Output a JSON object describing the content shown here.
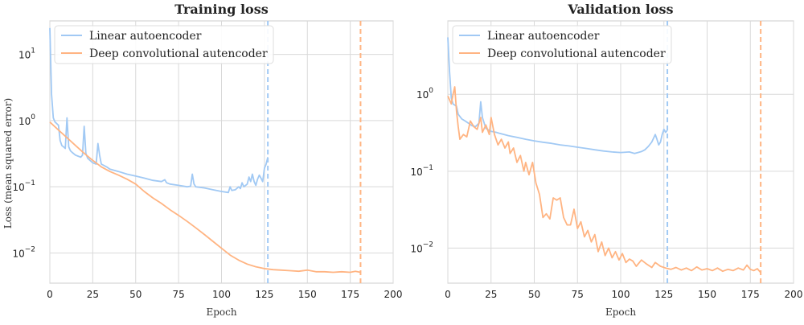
{
  "chart_data": [
    {
      "type": "line",
      "title": "Training loss",
      "xlabel": "Epoch",
      "ylabel": "Loss (mean squared error)",
      "xlim": [
        0,
        200
      ],
      "ylim": [
        0.0035,
        32
      ],
      "yscale": "log",
      "xticks": [
        "0",
        "25",
        "50",
        "75",
        "100",
        "125",
        "150",
        "175",
        "200"
      ],
      "yticks": [
        {
          "base": "10",
          "exp": "1",
          "value": 10
        },
        {
          "base": "10",
          "exp": "0",
          "value": 1
        },
        {
          "base": "10",
          "exp": "−1",
          "value": 0.1
        },
        {
          "base": "10",
          "exp": "−2",
          "value": 0.01
        }
      ],
      "grid": true,
      "legend": "upper left",
      "series": [
        {
          "name": "Linear autoencoder",
          "color": "#a1c9f4",
          "stop_epoch": 127,
          "points": [
            [
              0,
              25
            ],
            [
              1,
              2.5
            ],
            [
              2,
              1.1
            ],
            [
              3,
              0.95
            ],
            [
              4,
              0.9
            ],
            [
              5,
              0.85
            ],
            [
              6,
              0.5
            ],
            [
              7,
              0.42
            ],
            [
              8,
              0.4
            ],
            [
              9,
              0.38
            ],
            [
              10,
              1.1
            ],
            [
              11,
              0.4
            ],
            [
              12,
              0.35
            ],
            [
              13,
              0.33
            ],
            [
              15,
              0.3
            ],
            [
              18,
              0.28
            ],
            [
              19,
              0.3
            ],
            [
              20,
              0.82
            ],
            [
              21,
              0.32
            ],
            [
              22,
              0.27
            ],
            [
              25,
              0.23
            ],
            [
              27,
              0.22
            ],
            [
              28,
              0.45
            ],
            [
              29,
              0.3
            ],
            [
              30,
              0.22
            ],
            [
              33,
              0.2
            ],
            [
              35,
              0.185
            ],
            [
              40,
              0.17
            ],
            [
              45,
              0.155
            ],
            [
              50,
              0.145
            ],
            [
              55,
              0.135
            ],
            [
              60,
              0.125
            ],
            [
              65,
              0.12
            ],
            [
              67,
              0.128
            ],
            [
              68,
              0.115
            ],
            [
              70,
              0.11
            ],
            [
              75,
              0.105
            ],
            [
              80,
              0.1
            ],
            [
              82,
              0.102
            ],
            [
              83,
              0.155
            ],
            [
              84,
              0.11
            ],
            [
              85,
              0.1
            ],
            [
              90,
              0.096
            ],
            [
              95,
              0.09
            ],
            [
              100,
              0.085
            ],
            [
              104,
              0.082
            ],
            [
              105,
              0.1
            ],
            [
              106,
              0.088
            ],
            [
              108,
              0.09
            ],
            [
              110,
              0.1
            ],
            [
              111,
              0.094
            ],
            [
              112,
              0.115
            ],
            [
              113,
              0.1
            ],
            [
              115,
              0.11
            ],
            [
              116,
              0.14
            ],
            [
              117,
              0.12
            ],
            [
              118,
              0.155
            ],
            [
              119,
              0.12
            ],
            [
              120,
              0.105
            ],
            [
              121,
              0.13
            ],
            [
              122,
              0.15
            ],
            [
              123,
              0.135
            ],
            [
              124,
              0.12
            ],
            [
              125,
              0.19
            ],
            [
              126,
              0.22
            ],
            [
              127,
              0.28
            ]
          ]
        },
        {
          "name": "Deep convolutional autencoder",
          "color": "#ffb482",
          "stop_epoch": 181,
          "points": [
            [
              0,
              0.95
            ],
            [
              5,
              0.72
            ],
            [
              10,
              0.55
            ],
            [
              15,
              0.42
            ],
            [
              20,
              0.32
            ],
            [
              25,
              0.25
            ],
            [
              30,
              0.2
            ],
            [
              35,
              0.17
            ],
            [
              40,
              0.15
            ],
            [
              45,
              0.13
            ],
            [
              50,
              0.11
            ],
            [
              55,
              0.085
            ],
            [
              60,
              0.068
            ],
            [
              65,
              0.056
            ],
            [
              70,
              0.045
            ],
            [
              75,
              0.037
            ],
            [
              80,
              0.03
            ],
            [
              85,
              0.024
            ],
            [
              90,
              0.019
            ],
            [
              95,
              0.015
            ],
            [
              100,
              0.0118
            ],
            [
              105,
              0.0093
            ],
            [
              110,
              0.0078
            ],
            [
              115,
              0.0068
            ],
            [
              120,
              0.0062
            ],
            [
              125,
              0.0058
            ],
            [
              130,
              0.0056
            ],
            [
              135,
              0.0055
            ],
            [
              140,
              0.0054
            ],
            [
              145,
              0.0053
            ],
            [
              150,
              0.0055
            ],
            [
              155,
              0.0052
            ],
            [
              160,
              0.0052
            ],
            [
              165,
              0.0051
            ],
            [
              170,
              0.0052
            ],
            [
              175,
              0.0051
            ],
            [
              178,
              0.0053
            ],
            [
              181,
              0.0051
            ]
          ]
        }
      ]
    },
    {
      "type": "line",
      "title": "Validation loss",
      "xlabel": "Epoch",
      "ylabel": "",
      "xlim": [
        0,
        200
      ],
      "ylim": [
        0.0035,
        9
      ],
      "yscale": "log",
      "xticks": [
        "0",
        "25",
        "50",
        "75",
        "100",
        "125",
        "150",
        "175",
        "200"
      ],
      "yticks": [
        {
          "base": "10",
          "exp": "0",
          "value": 1
        },
        {
          "base": "10",
          "exp": "−1",
          "value": 0.1
        },
        {
          "base": "10",
          "exp": "−2",
          "value": 0.01
        }
      ],
      "grid": true,
      "legend": "upper left",
      "series": [
        {
          "name": "Linear autoencoder",
          "color": "#a1c9f4",
          "stop_epoch": 127,
          "points": [
            [
              0,
              5.5
            ],
            [
              1,
              2.0
            ],
            [
              2,
              0.9
            ],
            [
              3,
              0.75
            ],
            [
              5,
              0.7
            ],
            [
              6,
              0.55
            ],
            [
              8,
              0.48
            ],
            [
              10,
              0.45
            ],
            [
              12,
              0.42
            ],
            [
              14,
              0.39
            ],
            [
              16,
              0.38
            ],
            [
              18,
              0.42
            ],
            [
              19,
              0.8
            ],
            [
              20,
              0.5
            ],
            [
              22,
              0.36
            ],
            [
              25,
              0.33
            ],
            [
              28,
              0.32
            ],
            [
              30,
              0.31
            ],
            [
              35,
              0.29
            ],
            [
              40,
              0.275
            ],
            [
              45,
              0.26
            ],
            [
              50,
              0.248
            ],
            [
              55,
              0.238
            ],
            [
              60,
              0.23
            ],
            [
              65,
              0.22
            ],
            [
              70,
              0.213
            ],
            [
              75,
              0.205
            ],
            [
              80,
              0.198
            ],
            [
              85,
              0.19
            ],
            [
              90,
              0.183
            ],
            [
              95,
              0.178
            ],
            [
              100,
              0.175
            ],
            [
              105,
              0.178
            ],
            [
              108,
              0.17
            ],
            [
              110,
              0.175
            ],
            [
              112,
              0.18
            ],
            [
              114,
              0.19
            ],
            [
              116,
              0.21
            ],
            [
              118,
              0.24
            ],
            [
              120,
              0.3
            ],
            [
              121,
              0.26
            ],
            [
              122,
              0.22
            ],
            [
              123,
              0.24
            ],
            [
              124,
              0.3
            ],
            [
              125,
              0.35
            ],
            [
              126,
              0.32
            ],
            [
              127,
              0.34
            ]
          ]
        },
        {
          "name": "Deep convolutional autencoder",
          "color": "#ffb482",
          "stop_epoch": 181,
          "points": [
            [
              0,
              0.95
            ],
            [
              1,
              0.85
            ],
            [
              2,
              0.75
            ],
            [
              3,
              1.0
            ],
            [
              4,
              1.25
            ],
            [
              5,
              0.6
            ],
            [
              6,
              0.38
            ],
            [
              7,
              0.26
            ],
            [
              9,
              0.3
            ],
            [
              11,
              0.28
            ],
            [
              13,
              0.45
            ],
            [
              15,
              0.38
            ],
            [
              17,
              0.35
            ],
            [
              19,
              0.5
            ],
            [
              20,
              0.32
            ],
            [
              22,
              0.4
            ],
            [
              24,
              0.3
            ],
            [
              25,
              0.5
            ],
            [
              27,
              0.3
            ],
            [
              29,
              0.22
            ],
            [
              31,
              0.26
            ],
            [
              33,
              0.2
            ],
            [
              35,
              0.24
            ],
            [
              36,
              0.17
            ],
            [
              38,
              0.2
            ],
            [
              40,
              0.13
            ],
            [
              42,
              0.16
            ],
            [
              44,
              0.1
            ],
            [
              45,
              0.13
            ],
            [
              47,
              0.09
            ],
            [
              49,
              0.13
            ],
            [
              51,
              0.07
            ],
            [
              53,
              0.05
            ],
            [
              55,
              0.025
            ],
            [
              57,
              0.028
            ],
            [
              59,
              0.024
            ],
            [
              61,
              0.045
            ],
            [
              63,
              0.042
            ],
            [
              65,
              0.045
            ],
            [
              67,
              0.025
            ],
            [
              69,
              0.02
            ],
            [
              71,
              0.02
            ],
            [
              73,
              0.032
            ],
            [
              75,
              0.018
            ],
            [
              77,
              0.022
            ],
            [
              79,
              0.014
            ],
            [
              81,
              0.017
            ],
            [
              83,
              0.012
            ],
            [
              85,
              0.015
            ],
            [
              87,
              0.009
            ],
            [
              89,
              0.012
            ],
            [
              91,
              0.008
            ],
            [
              93,
              0.01
            ],
            [
              95,
              0.0075
            ],
            [
              97,
              0.009
            ],
            [
              99,
              0.007
            ],
            [
              101,
              0.0085
            ],
            [
              103,
              0.0065
            ],
            [
              105,
              0.0072
            ],
            [
              107,
              0.0068
            ],
            [
              109,
              0.0058
            ],
            [
              112,
              0.007
            ],
            [
              115,
              0.0062
            ],
            [
              118,
              0.0056
            ],
            [
              120,
              0.0065
            ],
            [
              123,
              0.0058
            ],
            [
              126,
              0.0055
            ],
            [
              129,
              0.0053
            ],
            [
              132,
              0.0056
            ],
            [
              135,
              0.0052
            ],
            [
              138,
              0.0055
            ],
            [
              141,
              0.0051
            ],
            [
              144,
              0.0057
            ],
            [
              147,
              0.0052
            ],
            [
              150,
              0.0054
            ],
            [
              153,
              0.0051
            ],
            [
              156,
              0.0055
            ],
            [
              159,
              0.005
            ],
            [
              162,
              0.0053
            ],
            [
              165,
              0.0051
            ],
            [
              168,
              0.0055
            ],
            [
              171,
              0.0052
            ],
            [
              173,
              0.006
            ],
            [
              175,
              0.0053
            ],
            [
              177,
              0.0051
            ],
            [
              179,
              0.0054
            ],
            [
              181,
              0.0048
            ]
          ]
        }
      ]
    }
  ]
}
